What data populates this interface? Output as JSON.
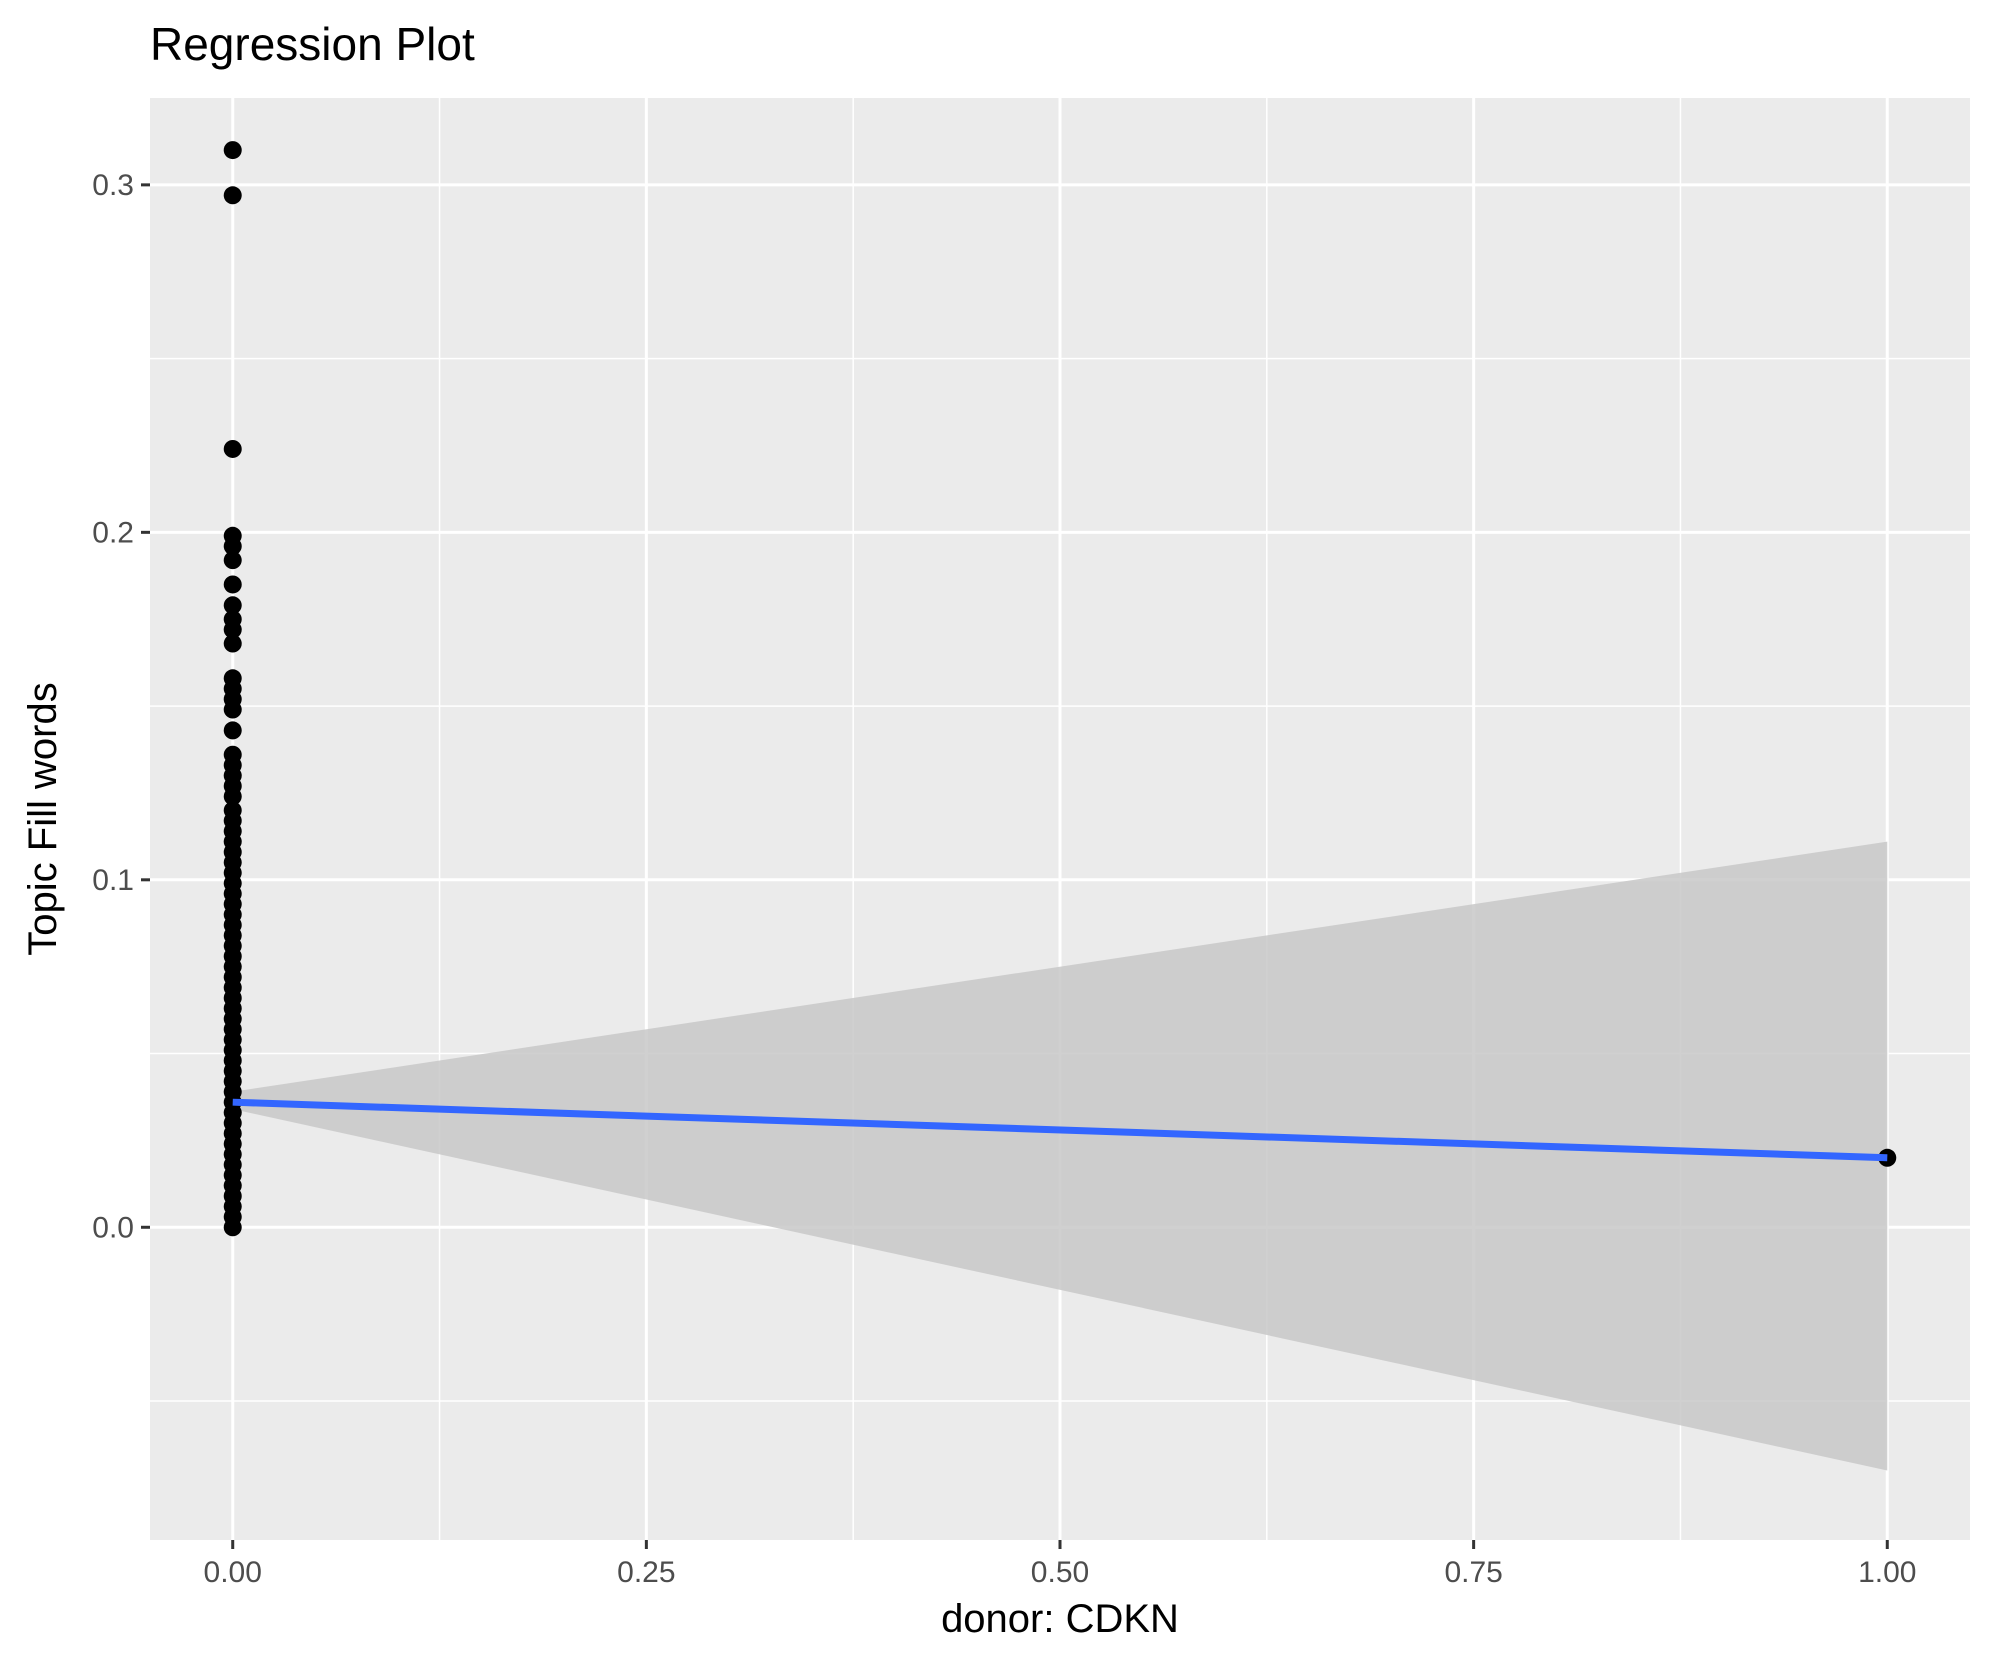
{
  "chart_data": {
    "type": "scatter",
    "title": "Regression Plot",
    "xlabel": "donor: CDKN",
    "ylabel": "Topic Fill words",
    "xlim": [
      -0.05,
      1.05
    ],
    "ylim": [
      -0.09,
      0.325
    ],
    "x_ticks": [
      0.0,
      0.25,
      0.5,
      0.75,
      1.0
    ],
    "x_tick_labels": [
      "0.00",
      "0.25",
      "0.50",
      "0.75",
      "1.00"
    ],
    "y_ticks": [
      0.0,
      0.1,
      0.2,
      0.3
    ],
    "y_tick_labels": [
      "0.0",
      "0.1",
      "0.2",
      "0.3"
    ],
    "grid": true,
    "points": [
      {
        "x": 0,
        "y": 0.31
      },
      {
        "x": 0,
        "y": 0.297
      },
      {
        "x": 0,
        "y": 0.224
      },
      {
        "x": 0,
        "y": 0.199
      },
      {
        "x": 0,
        "y": 0.196
      },
      {
        "x": 0,
        "y": 0.192
      },
      {
        "x": 0,
        "y": 0.185
      },
      {
        "x": 0,
        "y": 0.179
      },
      {
        "x": 0,
        "y": 0.175
      },
      {
        "x": 0,
        "y": 0.172
      },
      {
        "x": 0,
        "y": 0.168
      },
      {
        "x": 0,
        "y": 0.158
      },
      {
        "x": 0,
        "y": 0.155
      },
      {
        "x": 0,
        "y": 0.152
      },
      {
        "x": 0,
        "y": 0.149
      },
      {
        "x": 0,
        "y": 0.143
      },
      {
        "x": 0,
        "y": 0.136
      },
      {
        "x": 0,
        "y": 0.133
      },
      {
        "x": 0,
        "y": 0.13
      },
      {
        "x": 0,
        "y": 0.127
      },
      {
        "x": 0,
        "y": 0.124
      },
      {
        "x": 0,
        "y": 0.12
      },
      {
        "x": 0,
        "y": 0.117
      },
      {
        "x": 0,
        "y": 0.114
      },
      {
        "x": 0,
        "y": 0.111
      },
      {
        "x": 0,
        "y": 0.108
      },
      {
        "x": 0,
        "y": 0.105
      },
      {
        "x": 0,
        "y": 0.102
      },
      {
        "x": 0,
        "y": 0.099
      },
      {
        "x": 0,
        "y": 0.096
      },
      {
        "x": 0,
        "y": 0.093
      },
      {
        "x": 0,
        "y": 0.09
      },
      {
        "x": 0,
        "y": 0.087
      },
      {
        "x": 0,
        "y": 0.084
      },
      {
        "x": 0,
        "y": 0.081
      },
      {
        "x": 0,
        "y": 0.078
      },
      {
        "x": 0,
        "y": 0.075
      },
      {
        "x": 0,
        "y": 0.072
      },
      {
        "x": 0,
        "y": 0.069
      },
      {
        "x": 0,
        "y": 0.066
      },
      {
        "x": 0,
        "y": 0.063
      },
      {
        "x": 0,
        "y": 0.06
      },
      {
        "x": 0,
        "y": 0.057
      },
      {
        "x": 0,
        "y": 0.054
      },
      {
        "x": 0,
        "y": 0.051
      },
      {
        "x": 0,
        "y": 0.048
      },
      {
        "x": 0,
        "y": 0.045
      },
      {
        "x": 0,
        "y": 0.042
      },
      {
        "x": 0,
        "y": 0.039
      },
      {
        "x": 0,
        "y": 0.036
      },
      {
        "x": 0,
        "y": 0.033
      },
      {
        "x": 0,
        "y": 0.03
      },
      {
        "x": 0,
        "y": 0.027
      },
      {
        "x": 0,
        "y": 0.024
      },
      {
        "x": 0,
        "y": 0.021
      },
      {
        "x": 0,
        "y": 0.018
      },
      {
        "x": 0,
        "y": 0.015
      },
      {
        "x": 0,
        "y": 0.012
      },
      {
        "x": 0,
        "y": 0.009
      },
      {
        "x": 0,
        "y": 0.006
      },
      {
        "x": 0,
        "y": 0.003
      },
      {
        "x": 0,
        "y": 0.0
      },
      {
        "x": 1,
        "y": 0.02
      }
    ],
    "regression_line": {
      "x": [
        0,
        1
      ],
      "y": [
        0.036,
        0.02
      ]
    },
    "confidence_band": {
      "x": [
        0,
        1
      ],
      "lower": [
        0.034,
        -0.07
      ],
      "upper": [
        0.039,
        0.111
      ]
    },
    "colors": {
      "panel_background": "#ebebeb",
      "point": "#000000",
      "line": "#3366ff",
      "band": "#c8c8c8"
    }
  }
}
